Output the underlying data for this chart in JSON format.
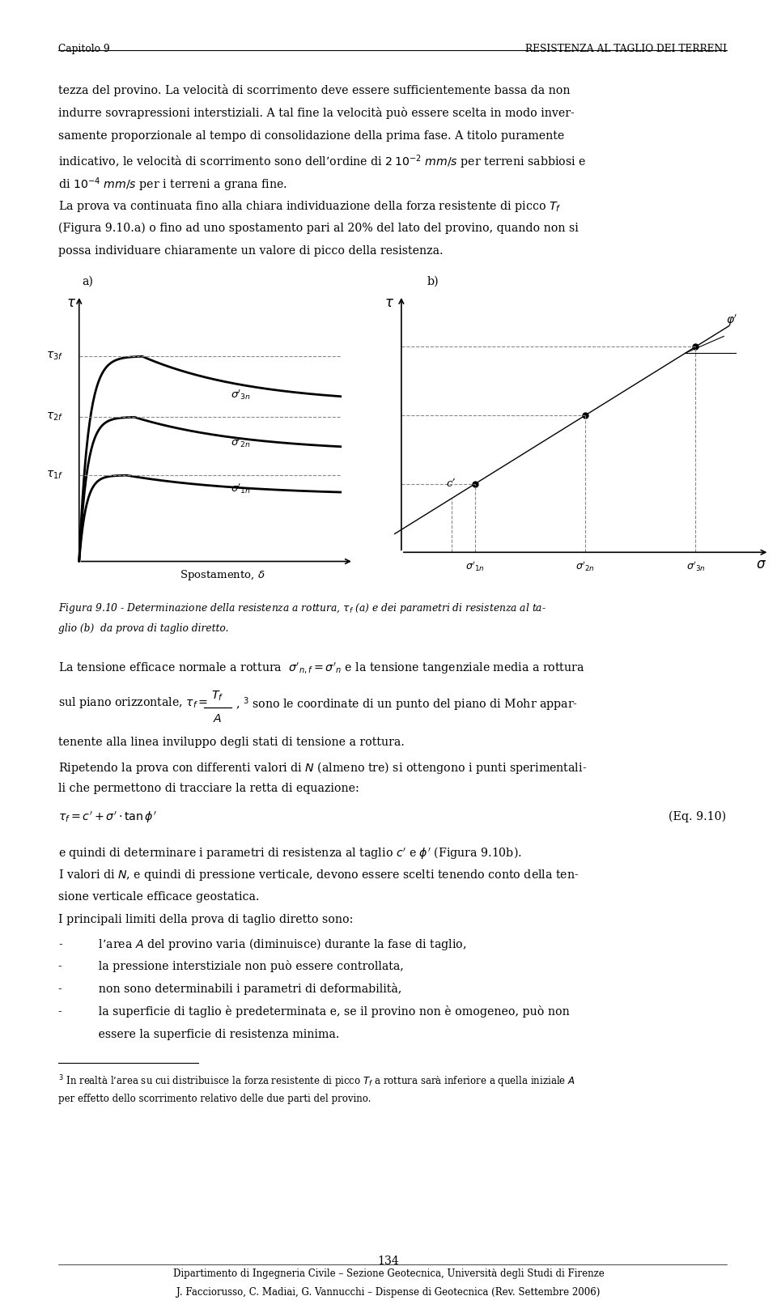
{
  "header_left": "Capitolo 9",
  "header_right": "RESISTENZA AL TAGLIO DEI TERRENI",
  "bg_color": "#ffffff",
  "text_color": "#000000",
  "lm": 0.075,
  "rm": 0.935,
  "fs_body": 10.2,
  "fs_small": 8.8,
  "fs_footnote": 8.5,
  "lh": 0.0175,
  "para1_lines": [
    "tezza del provino. La velocità di scorrimento deve essere sufficientemente bassa da non",
    "indurre sovrapressioni interstiziali. A tal fine la velocità può essere scelta in modo inver-",
    "samente proporzionale al tempo di consolidazione della prima fase. A titolo puramente",
    "indicativo, le velocità di scorrimento sono dell’ordine di $2\\,10^{-2}$ $mm/s$ per terreni sabbiosi e",
    "di $10^{-4}$ $mm/s$ per i terreni a grana fine."
  ],
  "para2_lines": [
    "La prova va continuata fino alla chiara individuazione della forza resistente di picco $T_f$",
    "(Figura 9.10.a) o fino ad uno spostamento pari al 20% del lato del provino, quando non si",
    "possa individuare chiaramente un valore di picco della resistenza."
  ],
  "label_a": "a)",
  "label_b": "b)",
  "fig_caption_lines": [
    "Figura 9.10 - Determinazione della resistenza a rottura, $\\tau_f$ (a) e dei parametri di resistenza al ta-",
    "glio (b)  da prova di taglio diretto."
  ],
  "para3_line1": "La tensione efficace normale a rottura  $\\sigma'_{n,f}= \\sigma'_n$ e la tensione tangenziale media a rottura",
  "para3_line2_pre": "sul piano orizzontale, $\\tau_f =$ ",
  "para3_line2_post": ", $^3$ sono le coordinate di un punto del piano di Mohr appar-",
  "para3_line3": "tenente alla linea inviluppo degli stati di tensione a rottura.",
  "para3_line4a": "Ripetendo la prova con differenti valori di $N$ (almeno tre) si ottengono i punti sperimentali-",
  "para3_line4b": "li che permettono di tracciare la retta di equazione:",
  "equation": "$\\tau_f = c'+\\sigma'\\cdot \\tan \\phi'$",
  "eq_label": "(Eq. 9.10)",
  "para4_lines": [
    "e quindi di determinare i parametri di resistenza al taglio $c'$ e $\\phi'$ (Figura 9.10b).",
    "I valori di $N$, e quindi di pressione verticale, devono essere scelti tenendo conto della ten-",
    "sione verticale efficace geostatica.",
    "I principali limiti della prova di taglio diretto sono:"
  ],
  "bullet_lines": [
    "-          l’area $A$ del provino varia (diminuisce) durante la fase di taglio,",
    "-          la pressione interstiziale non può essere controllata,",
    "-          non sono determinabili i parametri di deformabilità,",
    "-          la superficie di taglio è predeterminata e, se il provino non è omogeneo, può non",
    "           essere la superficie di resistenza minima."
  ],
  "footnote_lines": [
    "$^3$ In realtà l’area su cui distribuisce la forza resistente di picco $T_f$ a rottura sarà inferiore a quella iniziale $A$",
    "per effetto dello scorrimento relativo delle due parti del provino."
  ],
  "page_number": "134",
  "footer_lines": [
    "Dipartimento di Ingegneria Civile – Sezione Geotecnica, Università degli Studi di Firenze",
    "J. Facciorusso, C. Madiai, G. Vannucchi – Dispense di Geotecnica (Rev. Settembre 2006)"
  ]
}
